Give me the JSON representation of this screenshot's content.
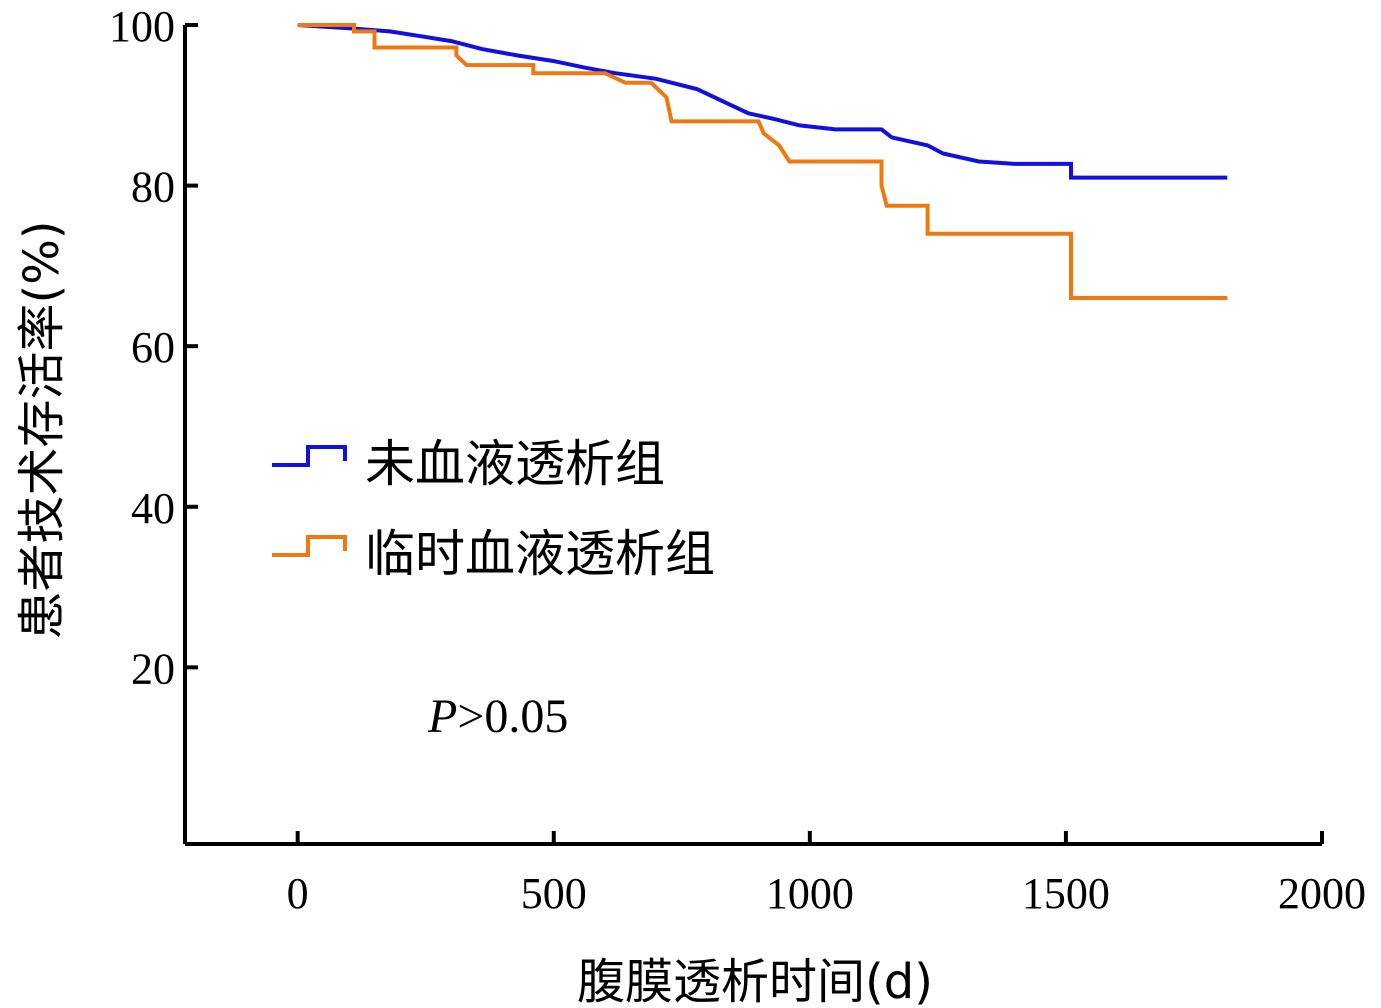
{
  "chart_data": {
    "type": "line",
    "step": true,
    "xlabel": "腹膜透析时间(d)",
    "ylabel": "患者技术存活率(%)",
    "xlim": [
      -220,
      2000
    ],
    "ylim": [
      -2,
      100
    ],
    "xticks": [
      0,
      500,
      1000,
      1500,
      2000
    ],
    "yticks": [
      20,
      40,
      60,
      80,
      100
    ],
    "grid": false,
    "legend_position": "middle-left",
    "annotation": {
      "italic": "P",
      "rest": ">0.05"
    },
    "series": [
      {
        "name": "未血液透析组",
        "color": "#1010e0",
        "points": [
          [
            0,
            100
          ],
          [
            100,
            99.6
          ],
          [
            180,
            99.2
          ],
          [
            240,
            98.6
          ],
          [
            300,
            98.0
          ],
          [
            360,
            97.0
          ],
          [
            430,
            96.2
          ],
          [
            500,
            95.5
          ],
          [
            560,
            94.7
          ],
          [
            620,
            94.0
          ],
          [
            700,
            93.3
          ],
          [
            780,
            92.0
          ],
          [
            840,
            90.2
          ],
          [
            880,
            89.0
          ],
          [
            930,
            88.3
          ],
          [
            980,
            87.5
          ],
          [
            1050,
            87.0
          ],
          [
            1140,
            87.0
          ],
          [
            1160,
            86.0
          ],
          [
            1230,
            85.0
          ],
          [
            1260,
            84.0
          ],
          [
            1330,
            83.0
          ],
          [
            1400,
            82.7
          ],
          [
            1510,
            82.7
          ],
          [
            1510,
            81.0
          ],
          [
            1815,
            81.0
          ]
        ]
      },
      {
        "name": "临时血液透析组",
        "color": "#f07810",
        "points": [
          [
            0,
            100
          ],
          [
            110,
            100
          ],
          [
            110,
            99.2
          ],
          [
            150,
            99.2
          ],
          [
            150,
            97.2
          ],
          [
            310,
            97.2
          ],
          [
            310,
            96.2
          ],
          [
            330,
            95.0
          ],
          [
            460,
            95.0
          ],
          [
            460,
            94.0
          ],
          [
            600,
            94.0
          ],
          [
            640,
            92.8
          ],
          [
            690,
            92.8
          ],
          [
            720,
            91.0
          ],
          [
            730,
            88.0
          ],
          [
            900,
            88.0
          ],
          [
            910,
            86.5
          ],
          [
            940,
            85.0
          ],
          [
            960,
            83.0
          ],
          [
            1140,
            83.0
          ],
          [
            1140,
            80.0
          ],
          [
            1150,
            77.5
          ],
          [
            1230,
            77.5
          ],
          [
            1230,
            74.0
          ],
          [
            1510,
            74.0
          ],
          [
            1510,
            66.0
          ],
          [
            1815,
            66.0
          ]
        ]
      }
    ]
  }
}
